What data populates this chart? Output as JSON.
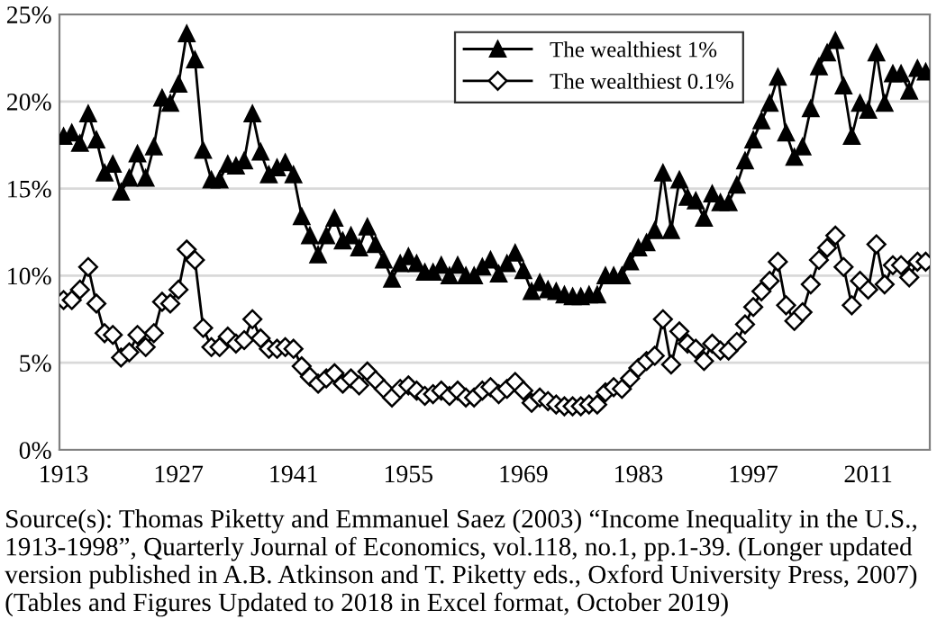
{
  "chart_data": {
    "type": "line",
    "x": [
      1913,
      1914,
      1915,
      1916,
      1917,
      1918,
      1919,
      1920,
      1921,
      1922,
      1923,
      1924,
      1925,
      1926,
      1927,
      1928,
      1929,
      1930,
      1931,
      1932,
      1933,
      1934,
      1935,
      1936,
      1937,
      1938,
      1939,
      1940,
      1941,
      1942,
      1943,
      1944,
      1945,
      1946,
      1947,
      1948,
      1949,
      1950,
      1951,
      1952,
      1953,
      1954,
      1955,
      1956,
      1957,
      1958,
      1959,
      1960,
      1961,
      1962,
      1963,
      1964,
      1965,
      1966,
      1967,
      1968,
      1969,
      1970,
      1971,
      1972,
      1973,
      1974,
      1975,
      1976,
      1977,
      1978,
      1979,
      1980,
      1981,
      1982,
      1983,
      1984,
      1985,
      1986,
      1987,
      1988,
      1989,
      1990,
      1991,
      1992,
      1993,
      1994,
      1995,
      1996,
      1997,
      1998,
      1999,
      2000,
      2001,
      2002,
      2003,
      2004,
      2005,
      2006,
      2007,
      2008,
      2009,
      2010,
      2011,
      2012,
      2013,
      2014,
      2015,
      2016,
      2017,
      2018
    ],
    "series": [
      {
        "name": "The wealthiest 1%",
        "color": "#000000",
        "marker": "triangle",
        "values": [
          18.0,
          18.2,
          17.6,
          19.3,
          17.8,
          15.9,
          16.4,
          14.8,
          15.6,
          17.0,
          15.6,
          17.4,
          20.2,
          19.9,
          21.0,
          23.9,
          22.4,
          17.2,
          15.5,
          15.5,
          16.4,
          16.3,
          16.6,
          19.3,
          17.1,
          15.8,
          16.2,
          16.5,
          15.8,
          13.4,
          12.3,
          11.2,
          12.3,
          13.3,
          12.0,
          12.3,
          11.6,
          12.8,
          11.8,
          10.9,
          9.8,
          10.7,
          11.1,
          10.7,
          10.2,
          10.2,
          10.6,
          10.0,
          10.6,
          10.0,
          10.0,
          10.5,
          10.9,
          10.1,
          10.7,
          11.3,
          10.3,
          9.1,
          9.6,
          9.2,
          9.1,
          8.9,
          8.8,
          8.8,
          8.9,
          8.9,
          10.0,
          10.0,
          10.0,
          10.8,
          11.6,
          11.9,
          12.6,
          15.9,
          12.6,
          15.5,
          14.5,
          14.3,
          13.3,
          14.7,
          14.2,
          14.2,
          15.2,
          16.6,
          17.8,
          18.9,
          19.9,
          21.4,
          18.2,
          16.8,
          17.4,
          19.6,
          22.0,
          22.8,
          23.5,
          20.9,
          18.0,
          19.9,
          19.5,
          22.8,
          19.9,
          21.6,
          21.6,
          20.6,
          21.9,
          21.7
        ]
      },
      {
        "name": "The wealthiest 0.1%",
        "color": "#000000",
        "marker": "diamond",
        "values": [
          8.6,
          8.6,
          9.2,
          10.5,
          8.4,
          6.7,
          6.6,
          5.3,
          5.6,
          6.6,
          5.9,
          6.7,
          8.5,
          8.4,
          9.2,
          11.5,
          10.9,
          7.0,
          5.9,
          5.9,
          6.5,
          6.1,
          6.3,
          7.5,
          6.4,
          5.8,
          5.8,
          5.9,
          5.8,
          4.8,
          4.2,
          3.8,
          4.1,
          4.4,
          3.8,
          4.1,
          3.7,
          4.5,
          4.0,
          3.5,
          3.0,
          3.5,
          3.7,
          3.4,
          3.1,
          3.2,
          3.4,
          3.1,
          3.4,
          3.0,
          3.0,
          3.4,
          3.6,
          3.2,
          3.5,
          3.9,
          3.4,
          2.7,
          3.0,
          2.8,
          2.6,
          2.5,
          2.5,
          2.5,
          2.6,
          2.6,
          3.3,
          3.6,
          3.5,
          4.1,
          4.7,
          5.1,
          5.4,
          7.5,
          4.9,
          6.8,
          6.1,
          5.8,
          5.1,
          6.1,
          5.7,
          5.7,
          6.2,
          7.2,
          8.2,
          9.1,
          9.7,
          10.8,
          8.3,
          7.4,
          7.9,
          9.5,
          10.9,
          11.6,
          12.3,
          10.5,
          8.3,
          9.7,
          9.2,
          11.8,
          9.5,
          10.6,
          10.6,
          9.9,
          10.8,
          10.8
        ]
      }
    ],
    "xlim": [
      1912.5,
      2018.5
    ],
    "xticks": [
      1913,
      1927,
      1941,
      1955,
      1969,
      1983,
      1997,
      2011
    ],
    "ylim": [
      0,
      25
    ],
    "yticks": [
      {
        "value": 0,
        "label": "0%"
      },
      {
        "value": 5,
        "label": "5%"
      },
      {
        "value": 10,
        "label": "10%"
      },
      {
        "value": 15,
        "label": "15%"
      },
      {
        "value": 20,
        "label": "20%"
      },
      {
        "value": 25,
        "label": "25%"
      }
    ],
    "grid": "y",
    "legend": "top",
    "line_style": "solid",
    "annotations": [
      "Source(s): Thomas Piketty and Emmanuel Saez (2003) “Income Inequality in the U.S., 1913-1998”, Quarterly Journal of Economics, vol.118, no.1, pp.1-39. (Longer updated version published in A.B. Atkinson and T. Piketty eds., Oxford University Press, 2007) (Tables and Figures Updated to 2018 in Excel format, October 2019)"
    ]
  }
}
